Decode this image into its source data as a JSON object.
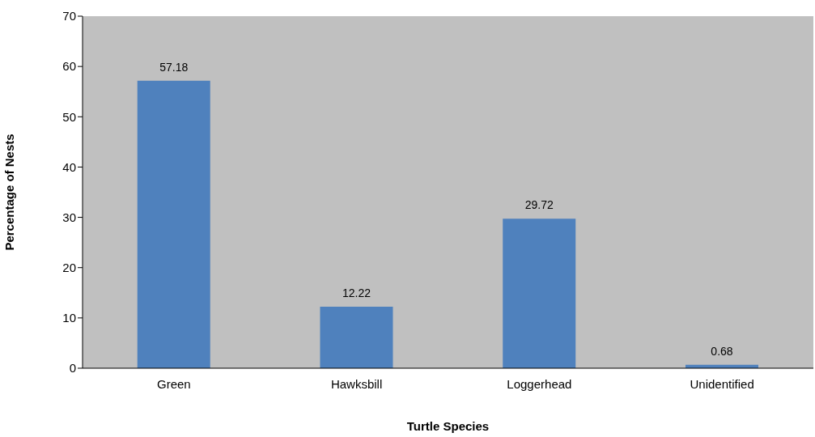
{
  "chart_data": {
    "type": "bar",
    "xlabel": "Turtle Species",
    "ylabel": "Percentage of Nests",
    "categories": [
      "Green",
      "Hawksbill",
      "Loggerhead",
      "Unidentified"
    ],
    "values": [
      57.18,
      12.22,
      29.72,
      0.68
    ],
    "color": "#4f81bd",
    "ylim": [
      0,
      70
    ],
    "yticks": [
      0,
      10,
      20,
      30,
      40,
      50,
      60,
      70
    ],
    "grid": false,
    "data_labels": true
  }
}
